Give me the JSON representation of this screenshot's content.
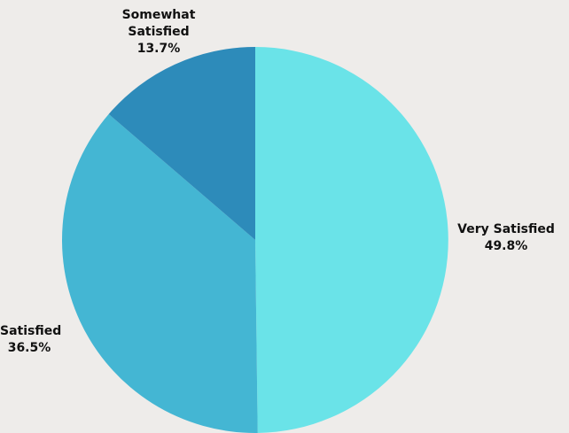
{
  "chart_data": {
    "type": "pie",
    "start_angle_deg": 90,
    "direction": "clockwise",
    "slices": [
      {
        "label": "Very Satisfied",
        "value": 49.8,
        "value_label": "49.8%",
        "color": "#6ae3e8"
      },
      {
        "label": "Satisfied",
        "value": 36.5,
        "value_label": "36.5%",
        "color": "#44b6d3"
      },
      {
        "label": "Somewhat Satisfied",
        "value": 13.7,
        "value_label": "13.7%",
        "color": "#2d8bba"
      }
    ],
    "title": "",
    "legend": "none",
    "background": "#eeecea"
  }
}
